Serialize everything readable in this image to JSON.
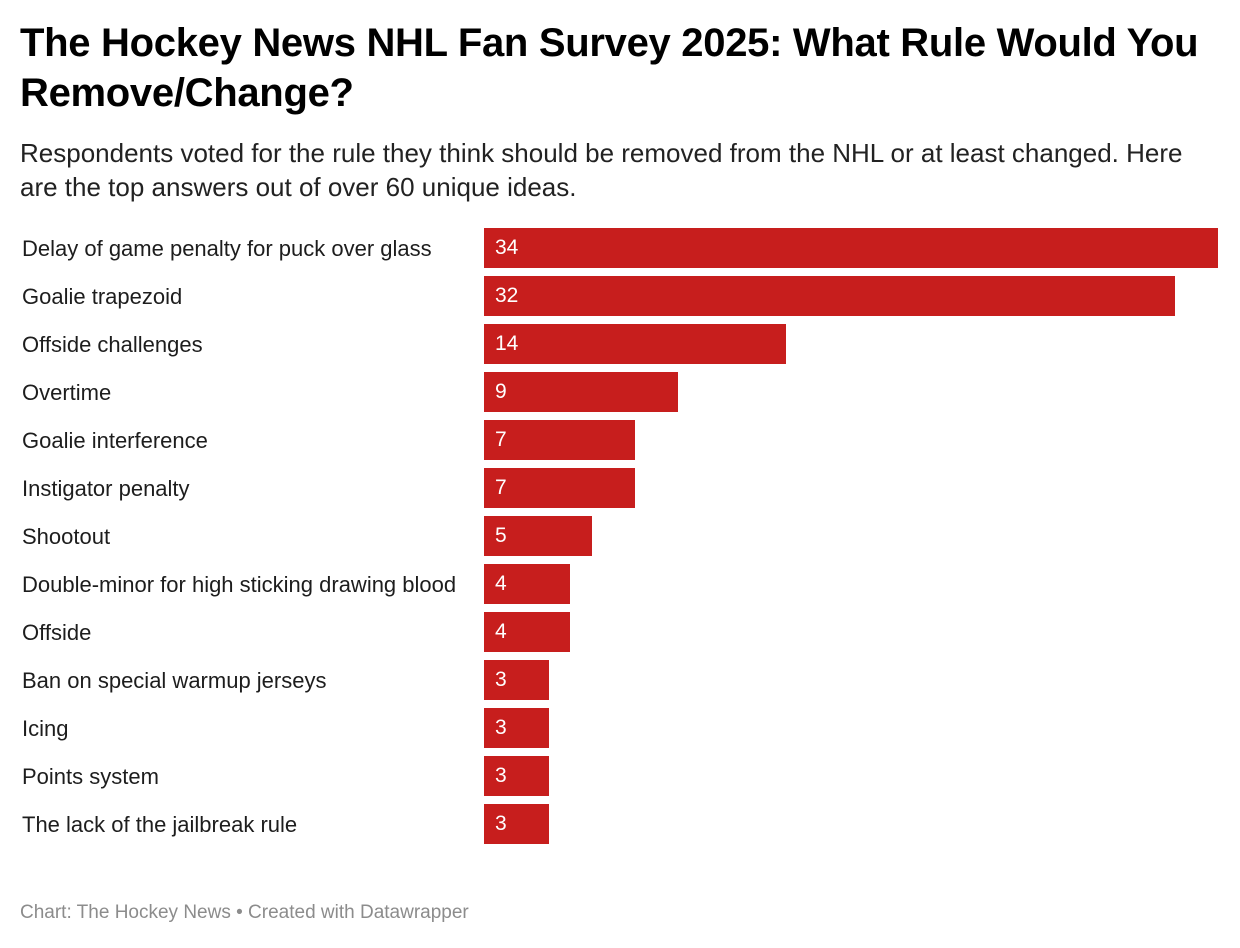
{
  "title": "The Hockey News NHL Fan Survey 2025: What Rule Would You Remove/Change?",
  "subtitle": "Respondents voted for the rule they think should be removed from the NHL or at least changed. Here are the top answers out of over 60 unique ideas.",
  "footer": {
    "credit": "Chart: The Hockey News • Created with Datawrapper"
  },
  "colors": {
    "bar": "#c71e1d",
    "value_text": "#ffffff"
  },
  "chart_data": {
    "type": "bar",
    "orientation": "horizontal",
    "title": "The Hockey News NHL Fan Survey 2025: What Rule Would You Remove/Change?",
    "xlabel": "",
    "ylabel": "",
    "xlim": [
      0,
      34
    ],
    "grid": false,
    "categories": [
      "Delay of game penalty for puck over glass",
      "Goalie trapezoid",
      "Offside challenges",
      "Overtime",
      "Goalie interference",
      "Instigator penalty",
      "Shootout",
      "Double-minor for high sticking drawing blood",
      "Offside",
      "Ban on special warmup jerseys",
      "Icing",
      "Points system",
      "The lack of the jailbreak rule"
    ],
    "values": [
      34,
      32,
      14,
      9,
      7,
      7,
      5,
      4,
      4,
      3,
      3,
      3,
      3
    ]
  }
}
